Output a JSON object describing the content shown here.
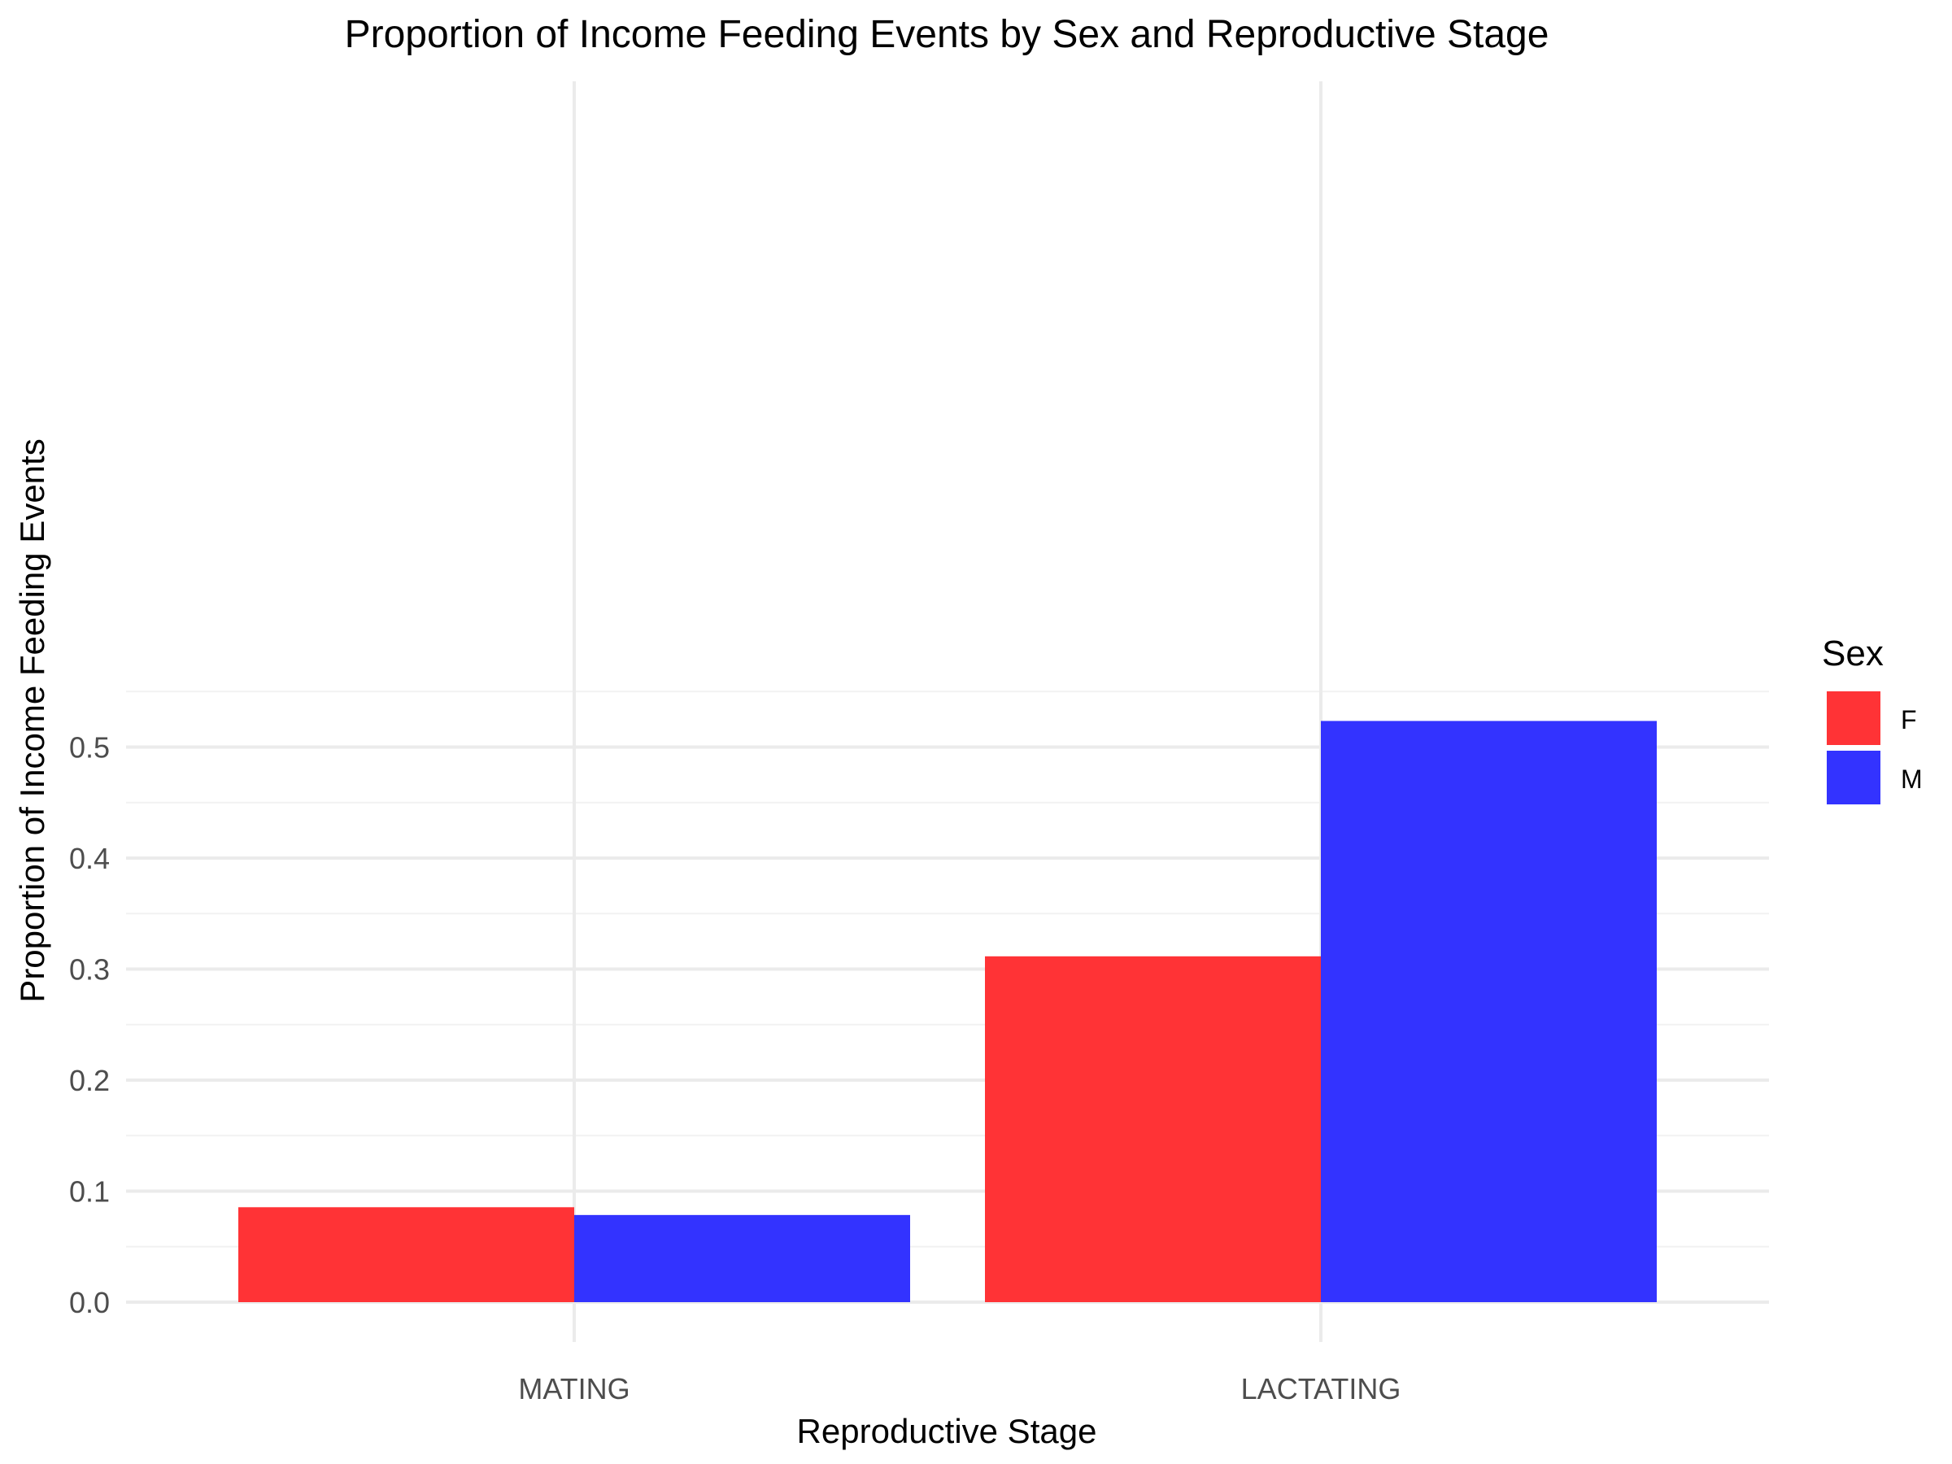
{
  "chart_data": {
    "type": "bar",
    "title": "Proportion of Income Feeding Events by Sex and Reproductive Stage",
    "xlabel": "Reproductive Stage",
    "ylabel": "Proportion of Income Feeding Events",
    "categories": [
      "MATING",
      "LACTATING"
    ],
    "series": [
      {
        "name": "F",
        "color": "#FF3336",
        "values": [
          0.0855,
          0.3115
        ]
      },
      {
        "name": "M",
        "color": "#3333FF",
        "values": [
          0.0785,
          0.5235
        ]
      }
    ],
    "ylim": [
      0,
      0.55
    ],
    "yticks": [
      0.0,
      0.1,
      0.2,
      0.3,
      0.4,
      0.5
    ],
    "ytick_labels": [
      "0.0",
      "0.1",
      "0.2",
      "0.3",
      "0.4",
      "0.5"
    ],
    "grid": true,
    "legend": {
      "title": "Sex",
      "placement": "right"
    }
  }
}
